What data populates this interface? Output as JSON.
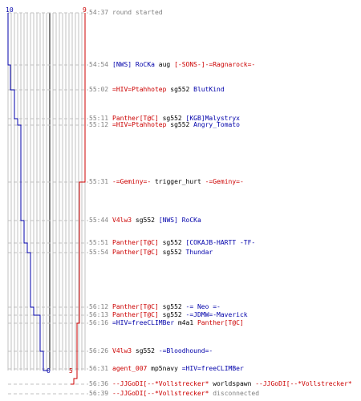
{
  "header": {
    "blue_start": "10",
    "red_start": "9",
    "blue_end": "0",
    "red_end": "5"
  },
  "colors": {
    "blue_team": "#0000aa",
    "red_team": "#cc0000",
    "grid": "#c0c0c0",
    "dashed": "#c0c0c0",
    "time": "#808080"
  },
  "events": [
    {
      "time": "54:37",
      "parts": [
        {
          "text": "round started",
          "team": "gray"
        }
      ]
    },
    {
      "time": "54:54",
      "parts": [
        {
          "text": "[NWS] RoCKa",
          "team": "blue"
        },
        {
          "text": " aug ",
          "team": "black"
        },
        {
          "text": "[-SONS-]-=Ragnarock=-",
          "team": "red"
        }
      ]
    },
    {
      "time": "55:02",
      "parts": [
        {
          "text": "=HIV=Ptahhotep",
          "team": "red"
        },
        {
          "text": " sg552 ",
          "team": "black"
        },
        {
          "text": "BlutKind",
          "team": "blue"
        }
      ]
    },
    {
      "time": "55:11",
      "parts": [
        {
          "text": "Panther[T@C]",
          "team": "red"
        },
        {
          "text": " sg552 ",
          "team": "black"
        },
        {
          "text": "[KGB]Malystryx",
          "team": "blue"
        }
      ]
    },
    {
      "time": "55:12",
      "parts": [
        {
          "text": "=HIV=Ptahhotep",
          "team": "red"
        },
        {
          "text": " sg552 ",
          "team": "black"
        },
        {
          "text": "Angry_Tomato",
          "team": "blue"
        }
      ]
    },
    {
      "time": "55:31",
      "parts": [
        {
          "text": "-=Geminy=-",
          "team": "red"
        },
        {
          "text": " trigger_hurt ",
          "team": "black"
        },
        {
          "text": "-=Geminy=-",
          "team": "red"
        }
      ]
    },
    {
      "time": "55:44",
      "parts": [
        {
          "text": "V4lw3",
          "team": "red"
        },
        {
          "text": " sg552 ",
          "team": "black"
        },
        {
          "text": "[NWS] RoCKa",
          "team": "blue"
        }
      ]
    },
    {
      "time": "55:51",
      "parts": [
        {
          "text": "Panther[T@C]",
          "team": "red"
        },
        {
          "text": " sg552 ",
          "team": "black"
        },
        {
          "text": "[COKAJB-HARTT -TF-",
          "team": "blue"
        }
      ]
    },
    {
      "time": "55:54",
      "parts": [
        {
          "text": "Panther[T@C]",
          "team": "red"
        },
        {
          "text": " sg552 ",
          "team": "black"
        },
        {
          "text": "Thundar",
          "team": "blue"
        }
      ]
    },
    {
      "time": "56:12",
      "parts": [
        {
          "text": "Panther[T@C]",
          "team": "red"
        },
        {
          "text": " sg552 ",
          "team": "black"
        },
        {
          "text": "-= Neo =-",
          "team": "blue"
        }
      ]
    },
    {
      "time": "56:13",
      "parts": [
        {
          "text": "Panther[T@C]",
          "team": "red"
        },
        {
          "text": " sg552 ",
          "team": "black"
        },
        {
          "text": "-=JDMW=-Maverick",
          "team": "blue"
        }
      ]
    },
    {
      "time": "56:16",
      "parts": [
        {
          "text": "=HIV=freeCLIMBer",
          "team": "blue"
        },
        {
          "text": " m4a1 ",
          "team": "black"
        },
        {
          "text": "Panther[T@C]",
          "team": "red"
        }
      ]
    },
    {
      "time": "56:26",
      "parts": [
        {
          "text": "V4lw3",
          "team": "red"
        },
        {
          "text": " sg552 ",
          "team": "black"
        },
        {
          "text": "-=Bloodhound=-",
          "team": "blue"
        }
      ]
    },
    {
      "time": "56:31",
      "parts": [
        {
          "text": "agent_007",
          "team": "red"
        },
        {
          "text": " mp5navy ",
          "team": "black"
        },
        {
          "text": "=HIV=freeCLIMBer",
          "team": "blue"
        }
      ]
    },
    {
      "time": "56:36",
      "parts": [
        {
          "text": "--JJGoDI[--*Vollstrecker*",
          "team": "red"
        },
        {
          "text": " worldspawn ",
          "team": "black"
        },
        {
          "text": "--JJGoDI[--*Vollstrecker*",
          "team": "red"
        }
      ]
    },
    {
      "time": "56:39",
      "parts": [
        {
          "text": "--JJGoDI[--*Vollstrecker*",
          "team": "red"
        },
        {
          "text": " disconnected",
          "team": "gray"
        }
      ]
    }
  ]
}
